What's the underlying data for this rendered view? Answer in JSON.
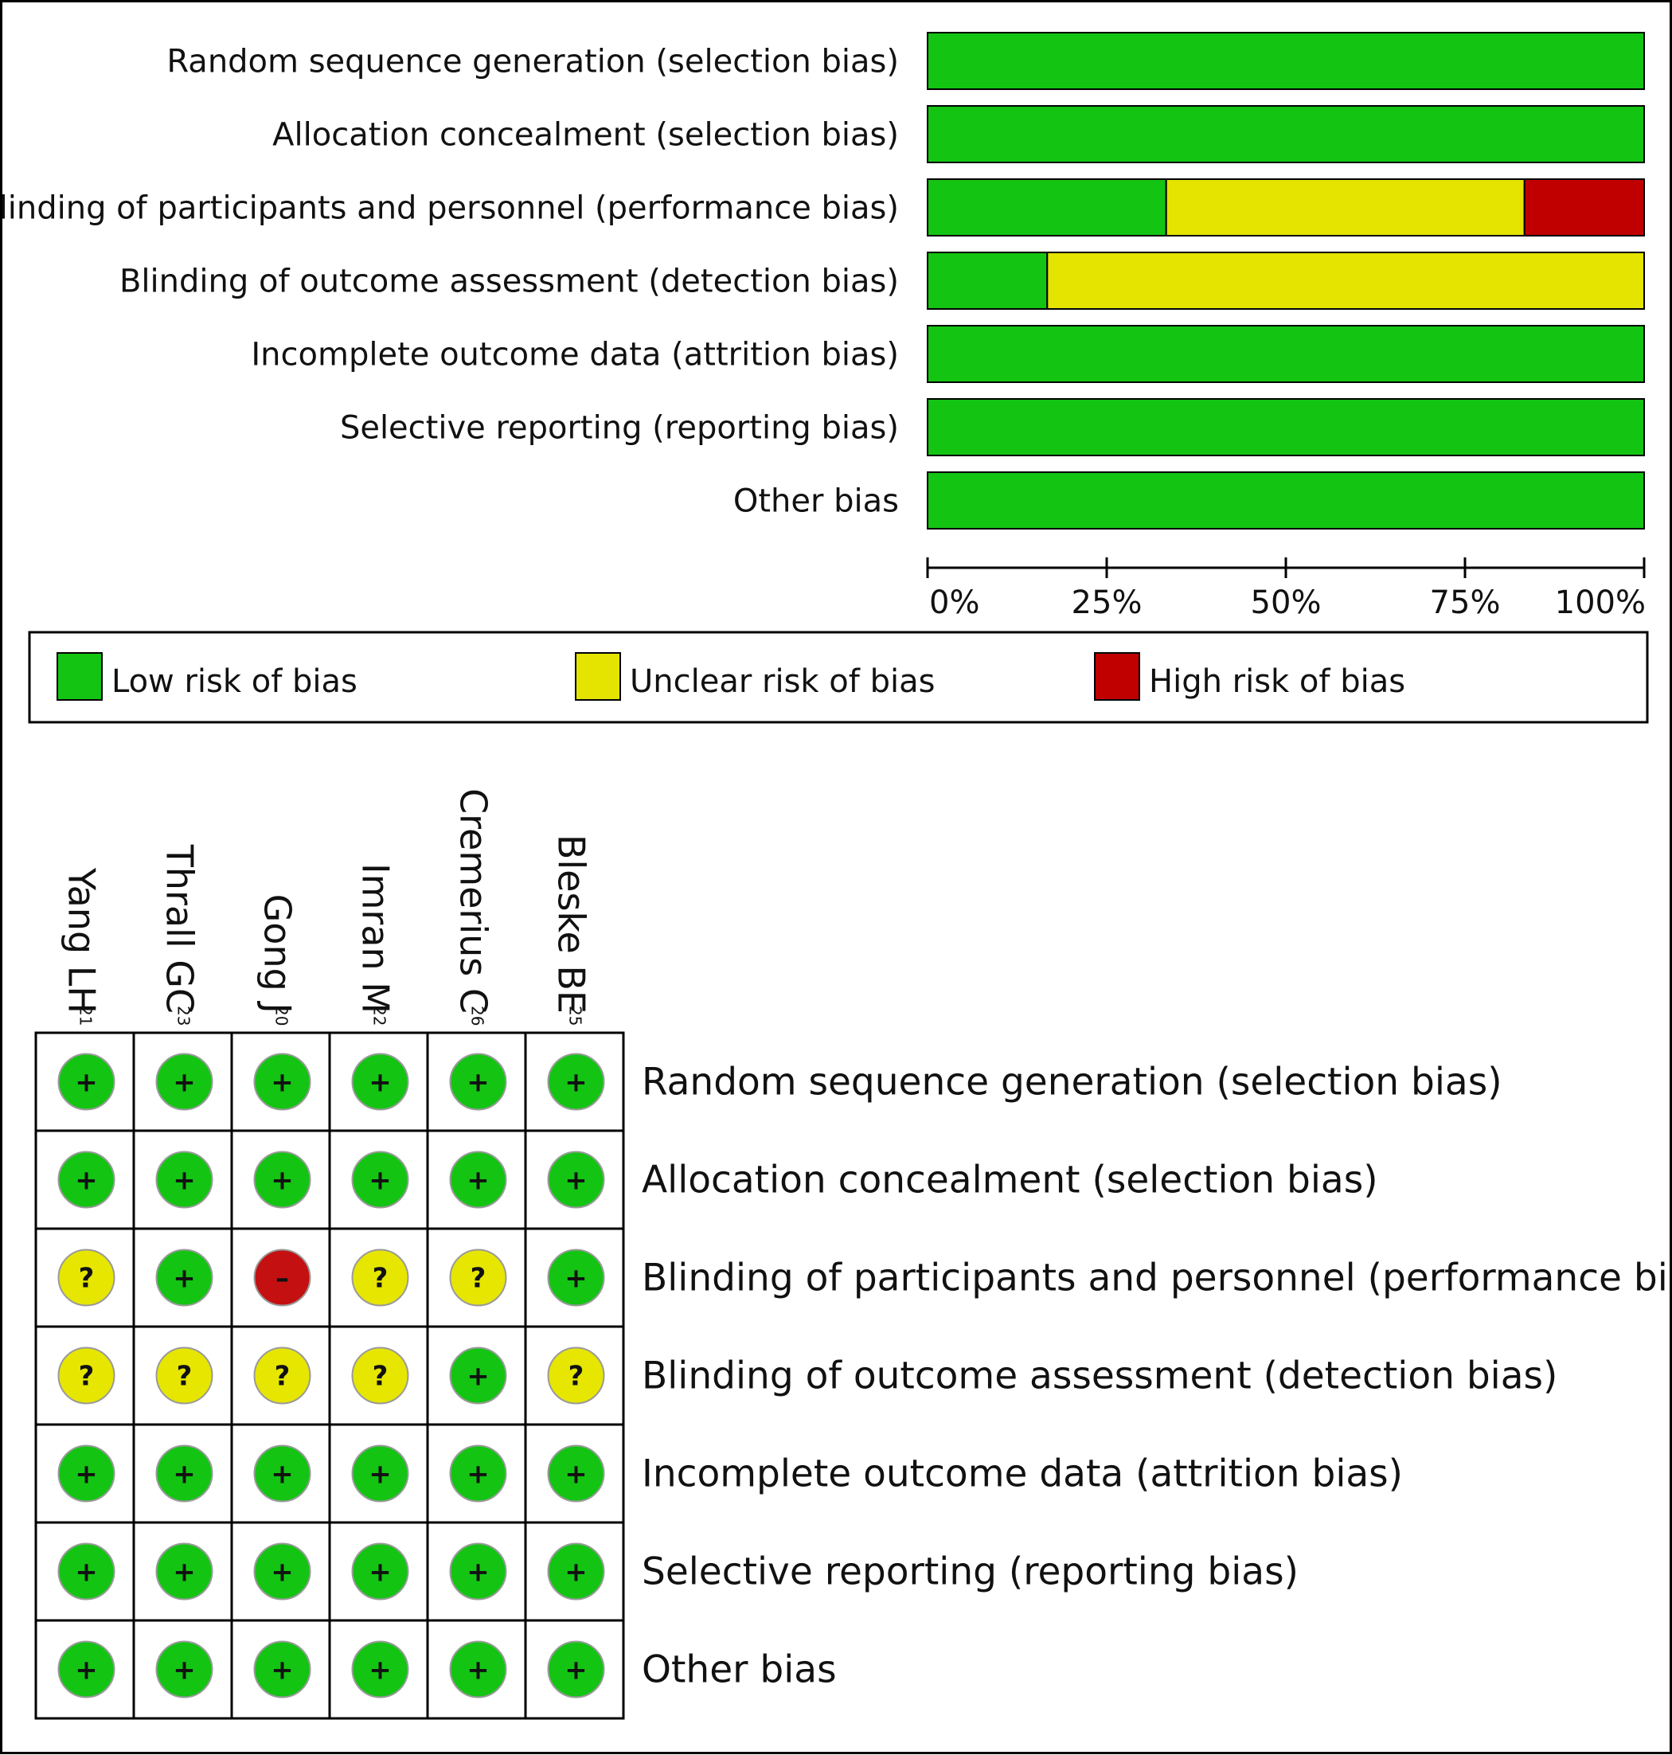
{
  "colors": {
    "low": "#13c413",
    "unclear": "#e4e400",
    "high": "#c00000",
    "low_dot": "#13c413",
    "unclear_dot": "#e6e600",
    "high_dot": "#c41010"
  },
  "legend": [
    {
      "key": "low",
      "label": "Low risk of bias"
    },
    {
      "key": "unclear",
      "label": "Unclear risk of bias"
    },
    {
      "key": "high",
      "label": "High risk of bias"
    }
  ],
  "chart_data": [
    {
      "type": "bar",
      "orientation": "horizontal",
      "stacked": true,
      "categories": [
        "Random sequence generation (selection bias)",
        "Allocation concealment (selection bias)",
        "Blinding of participants and personnel (performance bias)",
        "Blinding of outcome assessment (detection bias)",
        "Incomplete outcome data (attrition bias)",
        "Selective reporting (reporting bias)",
        "Other bias"
      ],
      "series": [
        {
          "name": "Low risk of bias",
          "color_key": "low",
          "values": [
            100,
            100,
            33.3,
            16.7,
            100,
            100,
            100
          ]
        },
        {
          "name": "Unclear risk of bias",
          "color_key": "unclear",
          "values": [
            0,
            0,
            50,
            83.3,
            0,
            0,
            0
          ]
        },
        {
          "name": "High risk of bias",
          "color_key": "high",
          "values": [
            0,
            0,
            16.7,
            0,
            0,
            0,
            0
          ]
        }
      ],
      "xlim": [
        0,
        100
      ],
      "xticks": [
        "0%",
        "25%",
        "50%",
        "75%",
        "100%"
      ],
      "grid": false,
      "legend_position": "bottom"
    },
    {
      "type": "table",
      "studies": [
        {
          "name": "Yang LH",
          "ref": "21"
        },
        {
          "name": "Thrall GC",
          "ref": "23"
        },
        {
          "name": "Gong J",
          "ref": "20"
        },
        {
          "name": "Imran M",
          "ref": "22"
        },
        {
          "name": "Cremerius C",
          "ref": "26"
        },
        {
          "name": "Bleske BE",
          "ref": "25"
        }
      ],
      "domains": [
        "Random sequence generation (selection bias)",
        "Allocation concealment (selection bias)",
        "Blinding of participants and personnel (performance bias)",
        "Blinding of outcome assessment (detection bias)",
        "Incomplete outcome data (attrition bias)",
        "Selective reporting (reporting bias)",
        "Other bias"
      ],
      "ratings": [
        [
          "low",
          "low",
          "low",
          "low",
          "low",
          "low"
        ],
        [
          "low",
          "low",
          "low",
          "low",
          "low",
          "low"
        ],
        [
          "unclear",
          "low",
          "high",
          "unclear",
          "unclear",
          "low"
        ],
        [
          "unclear",
          "unclear",
          "unclear",
          "unclear",
          "low",
          "unclear"
        ],
        [
          "low",
          "low",
          "low",
          "low",
          "low",
          "low"
        ],
        [
          "low",
          "low",
          "low",
          "low",
          "low",
          "low"
        ],
        [
          "low",
          "low",
          "low",
          "low",
          "low",
          "low"
        ]
      ],
      "symbols": {
        "low": "+",
        "unclear": "?",
        "high": "–"
      }
    }
  ]
}
